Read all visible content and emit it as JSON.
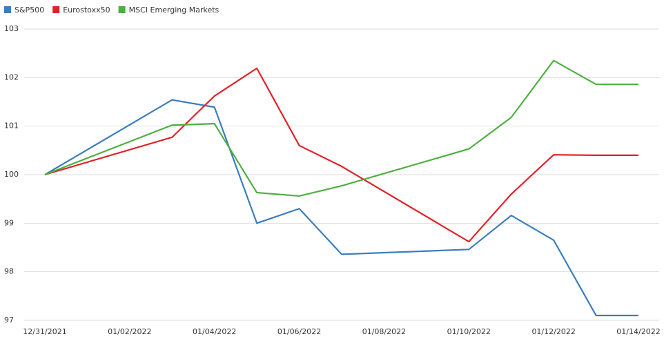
{
  "chart_data": {
    "type": "line",
    "x": [
      "12/31/2021",
      "01/03/2022",
      "01/04/2022",
      "01/05/2022",
      "01/06/2022",
      "01/07/2022",
      "01/10/2022",
      "01/11/2022",
      "01/12/2022",
      "01/13/2022",
      "01/14/2022"
    ],
    "series": [
      {
        "name": "S&P500",
        "color": "#3b7dbd",
        "values": [
          100,
          101.54,
          101.39,
          99.0,
          99.3,
          98.36,
          98.46,
          99.16,
          98.65,
          97.1,
          97.1
        ]
      },
      {
        "name": "Eurostoxx50",
        "color": "#de2228",
        "values": [
          100,
          100.77,
          101.62,
          102.19,
          100.6,
          100.17,
          98.62,
          99.6,
          100.41,
          100.4,
          100.4
        ]
      },
      {
        "name": "MSCI Emerging Markets",
        "color": "#4fae43",
        "values": [
          100,
          101.02,
          101.05,
          99.63,
          99.56,
          99.77,
          100.53,
          101.18,
          102.35,
          101.86,
          101.86
        ]
      }
    ],
    "xlim": [
      "12/31/2021",
      "01/14/2022"
    ],
    "xticks": [
      "12/31/2021",
      "01/02/2022",
      "01/04/2022",
      "01/06/2022",
      "01/08/2022",
      "01/10/2022",
      "01/12/2022",
      "01/14/2022"
    ],
    "ylim": [
      97,
      103
    ],
    "yticks": [
      97,
      98,
      99,
      100,
      101,
      102,
      103
    ],
    "grid": true,
    "legend": "top-left"
  }
}
